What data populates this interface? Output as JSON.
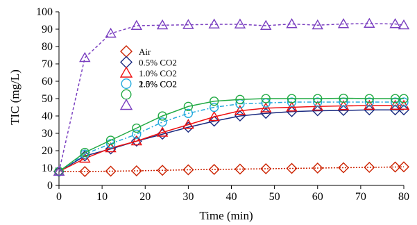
{
  "chart_data": {
    "type": "line",
    "xlabel": "Time (min)",
    "ylabel": "TIC (mg/L)",
    "xlim": [
      0,
      80
    ],
    "ylim": [
      0,
      100
    ],
    "x_ticks": [
      0,
      10,
      20,
      30,
      40,
      50,
      60,
      70,
      80
    ],
    "y_ticks": [
      0,
      10,
      20,
      30,
      40,
      50,
      60,
      70,
      80,
      90,
      100
    ],
    "grid": false,
    "legend_position": "top-left",
    "legend_overlap_text": "1.5% CO2",
    "series": [
      {
        "name": "Air",
        "color": "#cc2200",
        "marker": "diamond",
        "line": "dotted",
        "x": [
          0,
          6,
          12,
          18,
          24,
          30,
          36,
          42,
          48,
          54,
          60,
          66,
          72,
          78,
          80
        ],
        "y": [
          8,
          8,
          8.2,
          8.4,
          8.7,
          9,
          9.2,
          9.4,
          9.6,
          9.8,
          10,
          10.2,
          10.4,
          10.6,
          10.7
        ]
      },
      {
        "name": "0.5% CO2",
        "color": "#1a2a80",
        "marker": "diamond",
        "line": "solid",
        "x": [
          0,
          6,
          12,
          18,
          24,
          30,
          36,
          42,
          48,
          54,
          60,
          66,
          72,
          78,
          80
        ],
        "y": [
          8,
          17,
          21,
          25.5,
          29.5,
          33.5,
          37,
          40,
          41.5,
          42.5,
          43,
          43.2,
          43.5,
          43.5,
          43.5
        ]
      },
      {
        "name": "1.0% CO2",
        "color": "#ee1111",
        "marker": "triangle",
        "line": "solid",
        "x": [
          0,
          6,
          12,
          18,
          24,
          30,
          36,
          42,
          48,
          54,
          60,
          66,
          72,
          78,
          80
        ],
        "y": [
          8,
          15.5,
          21.5,
          25.5,
          30.5,
          35,
          39.5,
          43,
          44.5,
          45,
          45.5,
          45.8,
          46,
          46,
          46
        ]
      },
      {
        "name": "2.0% CO2",
        "color": "#22aadd",
        "marker": "circle",
        "line": "dashdot",
        "x": [
          0,
          6,
          12,
          18,
          24,
          30,
          36,
          42,
          48,
          54,
          60,
          66,
          72,
          78,
          80
        ],
        "y": [
          8,
          18,
          24,
          29.5,
          36.5,
          41.5,
          45,
          47,
          47.5,
          48,
          48,
          48,
          48,
          48,
          48
        ]
      },
      {
        "name": "",
        "color": "#22aa44",
        "marker": "circle",
        "line": "solid",
        "x": [
          0,
          6,
          12,
          18,
          24,
          30,
          36,
          42,
          48,
          54,
          60,
          66,
          72,
          78,
          80
        ],
        "y": [
          8,
          19,
          26,
          33,
          40,
          45.5,
          48.5,
          49.5,
          50,
          50,
          50,
          50.2,
          50,
          50,
          50
        ]
      },
      {
        "name": "",
        "color": "#7a3fc0",
        "marker": "triangle",
        "line": "dashed",
        "x": [
          0,
          6,
          12,
          18,
          24,
          30,
          36,
          42,
          48,
          54,
          60,
          66,
          72,
          78,
          80
        ],
        "y": [
          8,
          73.5,
          87.5,
          92,
          92.3,
          92.5,
          92.8,
          92.8,
          92,
          93,
          92.3,
          93,
          93.2,
          93,
          92.3
        ]
      }
    ]
  }
}
